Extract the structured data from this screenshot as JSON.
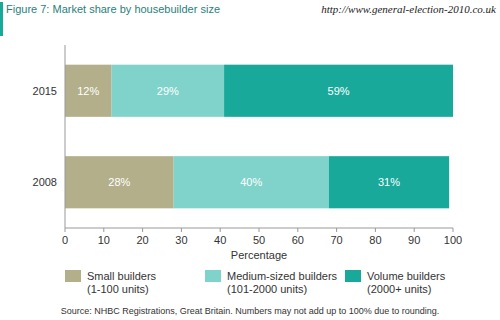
{
  "chart_data": {
    "type": "bar",
    "title": "Figure 7: Market share by housebuilder size",
    "x_label": "Percentage",
    "orientation": "horizontal",
    "stacked": true,
    "data_labels": true,
    "grid": false,
    "legend": "bottom",
    "categories": [
      "2015",
      "2008"
    ],
    "series": [
      {
        "name": "Small builders (1-100 units)",
        "color": "#b3af8a",
        "values": [
          12,
          28
        ],
        "value_labels": [
          "12%",
          "28%"
        ]
      },
      {
        "name": "Medium-sized builders (101-2000 units)",
        "color": "#7fd3ca",
        "values": [
          29,
          40
        ],
        "value_labels": [
          "29%",
          "40%"
        ]
      },
      {
        "name": "Volume builders (2000+ units)",
        "color": "#18a99b",
        "values": [
          59,
          31
        ],
        "value_labels": [
          "59%",
          "31%"
        ]
      }
    ],
    "xlim": [
      0,
      100
    ],
    "xticks": [
      0,
      10,
      20,
      30,
      40,
      50,
      60,
      70,
      80,
      90,
      100
    ],
    "annotations": [
      "http://www.general-election-2010.co.uk",
      "Source: NHBC Registrations, Great Britain. Numbers may not add up to 100% due to rounding."
    ]
  }
}
